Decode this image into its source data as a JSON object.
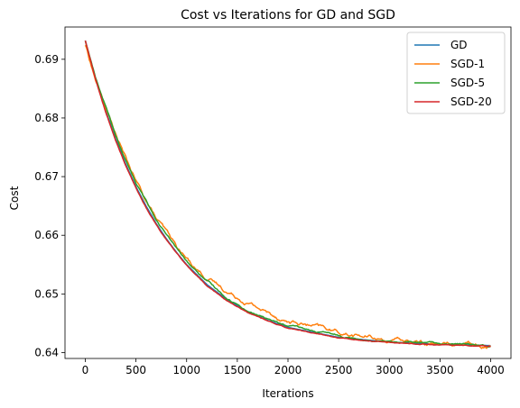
{
  "chart_data": {
    "type": "line",
    "title": "Cost vs Iterations for GD and SGD",
    "xlabel": "Iterations",
    "ylabel": "Cost",
    "xlim": [
      -200,
      4200
    ],
    "ylim": [
      0.639,
      0.6955
    ],
    "xticks": [
      0,
      500,
      1000,
      1500,
      2000,
      2500,
      3000,
      3500,
      4000
    ],
    "yticks": [
      0.64,
      0.65,
      0.66,
      0.67,
      0.68,
      0.69
    ],
    "grid": false,
    "legend": "top-right",
    "series": [
      {
        "name": "GD",
        "color": "#1f77b4",
        "x": [
          0,
          100,
          200,
          300,
          400,
          500,
          600,
          700,
          800,
          900,
          1000,
          1200,
          1400,
          1600,
          1800,
          2000,
          2500,
          3000,
          3500,
          4000
        ],
        "values": [
          0.6932,
          0.6868,
          0.6813,
          0.6764,
          0.6721,
          0.6683,
          0.665,
          0.662,
          0.6594,
          0.6571,
          0.655,
          0.6516,
          0.649,
          0.647,
          0.6455,
          0.6443,
          0.6426,
          0.6418,
          0.6414,
          0.6412
        ]
      },
      {
        "name": "SGD-1",
        "color": "#ff7f0e",
        "x": [
          0,
          100,
          200,
          300,
          400,
          500,
          600,
          700,
          800,
          900,
          1000,
          1200,
          1400,
          1600,
          1800,
          2000,
          2500,
          3000,
          3500,
          4000
        ],
        "values": [
          0.6925,
          0.6866,
          0.6818,
          0.6772,
          0.673,
          0.6691,
          0.6659,
          0.6628,
          0.6604,
          0.6579,
          0.6559,
          0.6528,
          0.6504,
          0.6487,
          0.6468,
          0.6454,
          0.6434,
          0.6421,
          0.6414,
          0.6414
        ]
      },
      {
        "name": "SGD-5",
        "color": "#2ca02c",
        "x": [
          0,
          100,
          200,
          300,
          400,
          500,
          600,
          700,
          800,
          900,
          1000,
          1200,
          1400,
          1600,
          1800,
          2000,
          2500,
          3000,
          3500,
          4000
        ],
        "values": [
          0.6932,
          0.687,
          0.682,
          0.677,
          0.6728,
          0.6689,
          0.6658,
          0.6627,
          0.6601,
          0.6577,
          0.6555,
          0.6521,
          0.6493,
          0.6472,
          0.6457,
          0.6445,
          0.6428,
          0.6419,
          0.6415,
          0.6413
        ]
      },
      {
        "name": "SGD-20",
        "color": "#d62728",
        "x": [
          0,
          100,
          200,
          300,
          400,
          500,
          600,
          700,
          800,
          900,
          1000,
          1200,
          1400,
          1600,
          1800,
          2000,
          2500,
          3000,
          3500,
          4000
        ],
        "values": [
          0.6932,
          0.6866,
          0.681,
          0.6761,
          0.6718,
          0.668,
          0.6647,
          0.6618,
          0.6592,
          0.6569,
          0.6548,
          0.6514,
          0.6488,
          0.6469,
          0.6454,
          0.6442,
          0.6425,
          0.6417,
          0.6413,
          0.6411
        ]
      }
    ]
  }
}
